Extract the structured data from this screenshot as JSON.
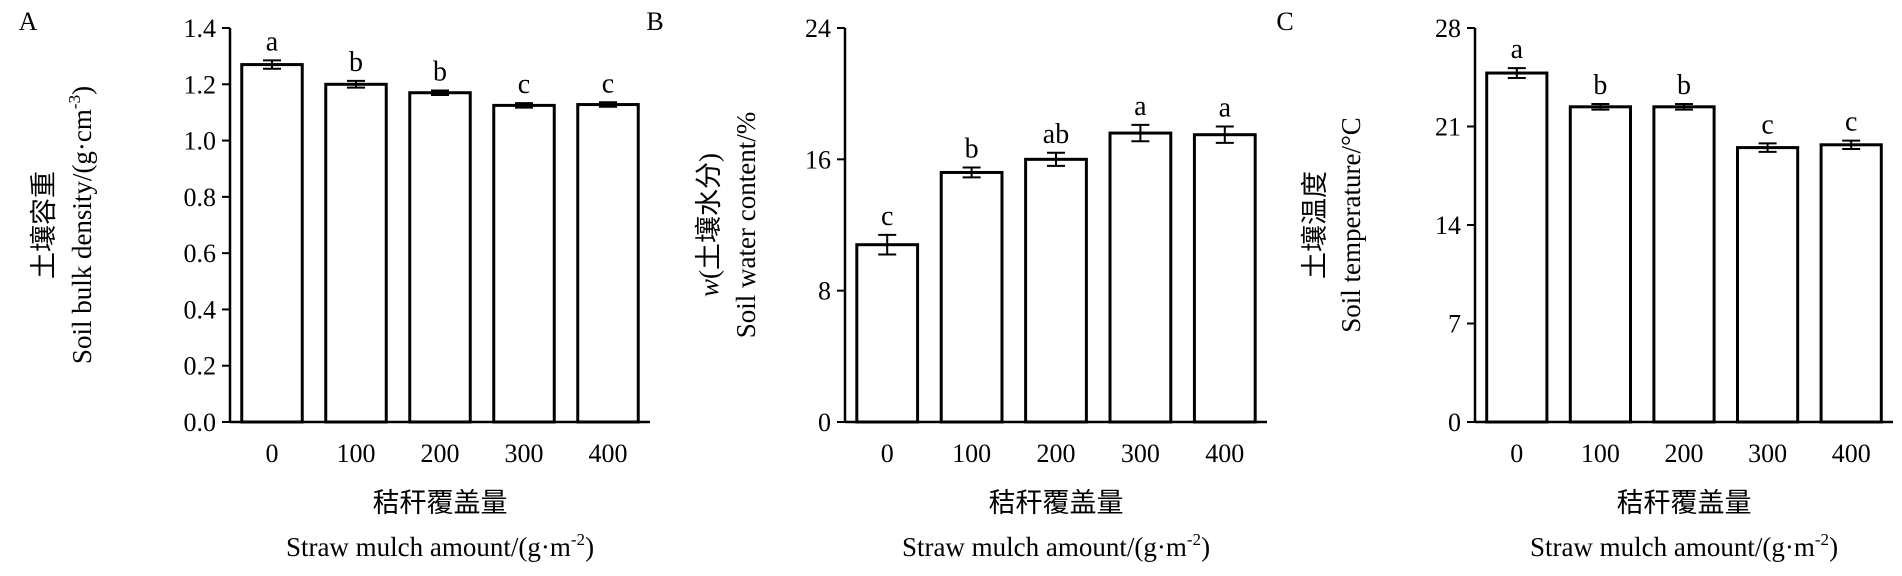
{
  "chart_data": [
    {
      "panel": "A",
      "type": "bar",
      "categories": [
        "0",
        "100",
        "200",
        "300",
        "400"
      ],
      "values": [
        1.27,
        1.2,
        1.17,
        1.125,
        1.128
      ],
      "errors": [
        0.015,
        0.012,
        0.008,
        0.008,
        0.008
      ],
      "letters": [
        "a",
        "b",
        "b",
        "c",
        "c"
      ],
      "ylim": [
        0,
        1.4
      ],
      "yticks": [
        "0.0",
        "0.2",
        "0.4",
        "0.6",
        "0.8",
        "1.0",
        "1.2",
        "1.4"
      ],
      "ylabel_cn": "土壤容重",
      "ylabel": "Soil bulk density/(g·cm",
      "ylabel_sup": "-3",
      "ylabel_end": ")",
      "xlabel_cn": "秸秆覆盖量",
      "xlabel": "Straw mulch amount/(g·m",
      "xlabel_sup": "-2",
      "xlabel_end": ")"
    },
    {
      "panel": "B",
      "type": "bar",
      "categories": [
        "0",
        "100",
        "200",
        "300",
        "400"
      ],
      "values": [
        10.8,
        15.2,
        16.0,
        17.6,
        17.5
      ],
      "errors": [
        0.6,
        0.3,
        0.4,
        0.5,
        0.5
      ],
      "letters": [
        "c",
        "b",
        "ab",
        "a",
        "a"
      ],
      "ylim": [
        0,
        24
      ],
      "yticks": [
        "0",
        "8",
        "16",
        "24"
      ],
      "ylabel_prefix": "w",
      "ylabel_cn": "(土壤水分)",
      "ylabel": "Soil water content/%",
      "xlabel_cn": "秸秆覆盖量",
      "xlabel": "Straw mulch amount/(g·m",
      "xlabel_sup": "-2",
      "xlabel_end": ")"
    },
    {
      "panel": "C",
      "type": "bar",
      "categories": [
        "0",
        "100",
        "200",
        "300",
        "400"
      ],
      "values": [
        24.8,
        22.4,
        22.4,
        19.5,
        19.7
      ],
      "errors": [
        0.35,
        0.2,
        0.2,
        0.3,
        0.3
      ],
      "letters": [
        "a",
        "b",
        "b",
        "c",
        "c"
      ],
      "ylim": [
        0,
        28
      ],
      "yticks": [
        "0",
        "7",
        "14",
        "21",
        "28"
      ],
      "ylabel_cn": "土壤温度",
      "ylabel": "Soil temperature/°C",
      "xlabel_cn": "秸秆覆盖量",
      "xlabel": "Straw mulch amount/(g·m",
      "xlabel_sup": "-2",
      "xlabel_end": ")"
    }
  ]
}
